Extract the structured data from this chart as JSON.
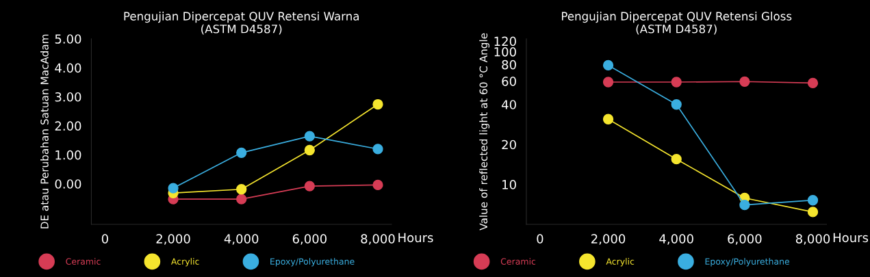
{
  "chart_data": [
    {
      "type": "line",
      "title": "Pengujian Dipercepat QUV Retensi Warna\n(ASTM D4587)",
      "ylabel": "DE atau Perubahan Satuan MacAdam",
      "xlabel": "Hours",
      "x": [
        2000,
        4000,
        6000,
        8000
      ],
      "xlim": [
        -400,
        8400
      ],
      "xticks": [
        0,
        {
          "value": 2000,
          "label": "2,000"
        },
        {
          "value": 4000,
          "label": "4,000"
        },
        {
          "value": 6000,
          "label": "6,000"
        },
        {
          "value": 8000,
          "label": "8,000"
        }
      ],
      "ylim": [
        -1.4,
        5.0
      ],
      "yticks": [
        {
          "value": 0,
          "label": "0.00"
        },
        {
          "value": 1,
          "label": "1.00"
        },
        {
          "value": 2,
          "label": "2.00"
        },
        {
          "value": 3,
          "label": "3.00"
        },
        {
          "value": 4,
          "label": "4.00"
        },
        {
          "value": 5,
          "label": "5.00"
        }
      ],
      "marker": "circle",
      "grid": false,
      "legend": "bottom",
      "series": [
        {
          "name": "Ceramic",
          "color": "#d63c55",
          "values": [
            -0.53,
            -0.53,
            -0.08,
            -0.04
          ]
        },
        {
          "name": "Acrylic",
          "color": "#f5e52e",
          "values": [
            -0.32,
            -0.19,
            1.16,
            2.74
          ]
        },
        {
          "name": "Epoxy/Polyurethane",
          "color": "#3aaee0",
          "values": [
            -0.15,
            1.07,
            1.64,
            1.2
          ]
        }
      ]
    },
    {
      "type": "line",
      "title": "Pengujian Dipercepat QUV Retensi Gloss\n(ASTM D4587)",
      "ylabel": "Value of reflected light at 60 °C Angle",
      "xlabel": "Hours",
      "x": [
        2000,
        4000,
        6000,
        8000
      ],
      "xticks": [
        0,
        {
          "value": 2000,
          "label": "2,000"
        },
        {
          "value": 4000,
          "label": "4,000"
        },
        {
          "value": 6000,
          "label": "6,000"
        },
        {
          "value": 8000,
          "label": "8,000"
        }
      ],
      "xlim": [
        -400,
        8400
      ],
      "log": "y",
      "ylim": [
        5,
        125
      ],
      "yticks": [
        10,
        20,
        40,
        60,
        80,
        100,
        120
      ],
      "marker": "circle",
      "grid": false,
      "legend": "bottom",
      "series": [
        {
          "name": "Ceramic",
          "color": "#d63c55",
          "values": [
            59,
            59,
            59.5,
            58
          ]
        },
        {
          "name": "Acrylic",
          "color": "#f5e52e",
          "values": [
            31,
            15.5,
            7.9,
            6.2
          ]
        },
        {
          "name": "Epoxy/Polyurethane",
          "color": "#3aaee0",
          "values": [
            79,
            40,
            7.0,
            7.6
          ]
        }
      ]
    }
  ]
}
